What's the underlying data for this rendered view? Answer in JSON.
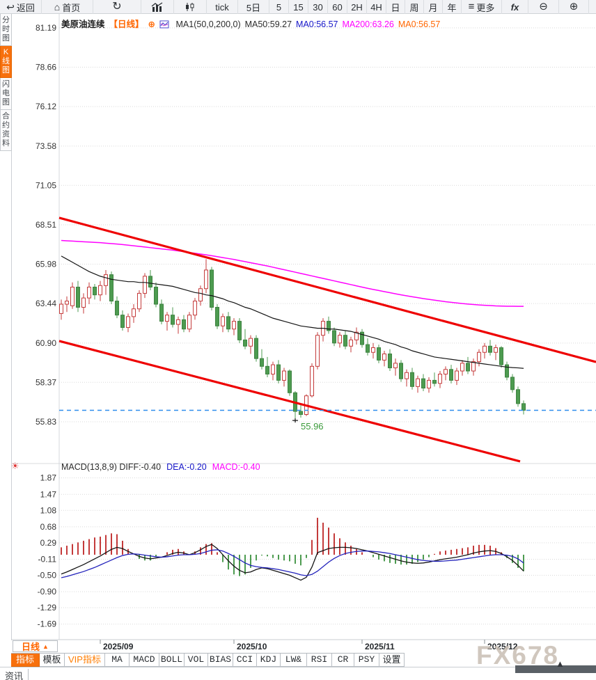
{
  "toolbar": {
    "items": [
      {
        "id": "back",
        "icon": "back",
        "label": "返回",
        "w": 60
      },
      {
        "id": "home",
        "icon": "home",
        "label": "首页",
        "w": 74
      },
      {
        "id": "refresh",
        "icon": "refresh",
        "label": "",
        "w": 69
      },
      {
        "id": "line-chart-mode",
        "icon": "bar-line-chart",
        "label": "",
        "w": 47
      },
      {
        "id": "candle-chart-mode",
        "icon": "candle-chart",
        "label": "",
        "w": 47
      },
      {
        "id": "tick",
        "icon": "",
        "label": "tick",
        "w": 45
      },
      {
        "id": "period-5d",
        "icon": "",
        "label": "5日",
        "w": 45
      },
      {
        "id": "period-5",
        "icon": "",
        "label": "5",
        "w": 28
      },
      {
        "id": "period-15",
        "icon": "",
        "label": "15",
        "w": 28
      },
      {
        "id": "period-30",
        "icon": "",
        "label": "30",
        "w": 28
      },
      {
        "id": "period-60",
        "icon": "",
        "label": "60",
        "w": 28
      },
      {
        "id": "period-2h",
        "icon": "",
        "label": "2H",
        "w": 28
      },
      {
        "id": "period-4h",
        "icon": "",
        "label": "4H",
        "w": 28
      },
      {
        "id": "period-day",
        "icon": "",
        "label": "日",
        "w": 27
      },
      {
        "id": "period-week",
        "icon": "",
        "label": "周",
        "w": 27
      },
      {
        "id": "period-month",
        "icon": "",
        "label": "月",
        "w": 27
      },
      {
        "id": "period-year",
        "icon": "",
        "label": "年",
        "w": 27
      },
      {
        "id": "more",
        "icon": "menu",
        "label": "更多",
        "w": 58
      },
      {
        "id": "fx",
        "icon": "fx",
        "label": "",
        "w": 38
      },
      {
        "id": "zoom-out",
        "icon": "zoom-out",
        "label": "",
        "w": 44
      },
      {
        "id": "zoom-in",
        "icon": "zoom-in",
        "label": "",
        "w": 43
      }
    ]
  },
  "sidebar": {
    "tabs": [
      {
        "label": "分时图",
        "active": false
      },
      {
        "label": "K线图",
        "active": true
      },
      {
        "label": "闪电图",
        "active": false
      },
      {
        "label": "合约资料",
        "active": false
      }
    ]
  },
  "legend": {
    "symbol": "美原油连续",
    "period_tag": "【日线】",
    "plus_badge": "⊕",
    "ma_config": "MA1(50,0,200,0)",
    "ma50": "MA50:59.27",
    "ma0_blue": "MA0:56.57",
    "ma200": "MA200:63.26",
    "ma0_orange": "MA0:56.57"
  },
  "macd_header": {
    "name_and_diff": "MACD(13,8,9) DIFF:-0.40",
    "dea": "DEA:-0.20",
    "macd": "MACD:-0.40",
    "gear_icon": "☀"
  },
  "bottom": {
    "period": {
      "label": "日线",
      "arrow": "▲"
    },
    "tabs": [
      {
        "label": "指标",
        "style": "active",
        "cjk": true,
        "w": 41
      },
      {
        "label": "模板",
        "style": "normal",
        "cjk": true,
        "w": 36
      },
      {
        "label": "VIP指标",
        "style": "vip",
        "cjk": true,
        "w": 58
      },
      {
        "label": "MA",
        "style": "normal",
        "w": 35
      },
      {
        "label": "MACD",
        "style": "normal",
        "w": 43
      },
      {
        "label": "BOLL",
        "style": "normal",
        "w": 36
      },
      {
        "label": "VOL",
        "style": "normal",
        "w": 34
      },
      {
        "label": "BIAS",
        "style": "normal",
        "w": 36
      },
      {
        "label": "CCI",
        "style": "normal",
        "w": 34
      },
      {
        "label": "KDJ",
        "style": "normal",
        "w": 34
      },
      {
        "label": "LW&",
        "style": "normal",
        "w": 38
      },
      {
        "label": "RSI",
        "style": "normal",
        "w": 36
      },
      {
        "label": "CR",
        "style": "normal",
        "w": 32
      },
      {
        "label": "PSY",
        "style": "normal",
        "w": 36
      },
      {
        "label": "设置",
        "style": "normal",
        "cjk": true,
        "w": 36
      }
    ],
    "news_tab": "资讯",
    "watermark": "FX678",
    "scroll_arrow": "▲"
  },
  "colors": {
    "accent_orange": "#ff6600",
    "up_red": "#c43a3a",
    "down_green": "#4d9b50",
    "ma50_black": "#141414",
    "ma200_magenta": "#ff00ff",
    "diff_black": "#141414",
    "dea_blue": "#2222bb",
    "channel_red": "#ee0202",
    "last_price_blue": "#2e8ded",
    "low_label_green": "#3a9a3a",
    "grid": "#d9d9d9",
    "axis_text": "#333333"
  },
  "chart_data": {
    "type": "candlestick+macd",
    "title": "美原油连续 日线",
    "price_axis": {
      "labels": [
        "81.19",
        "78.66",
        "76.12",
        "73.58",
        "71.05",
        "68.51",
        "65.98",
        "63.44",
        "60.90",
        "58.37",
        "55.83"
      ]
    },
    "x_ticks": [
      {
        "label": "2025/09",
        "index": 7
      },
      {
        "label": "2025/10",
        "index": 31
      },
      {
        "label": "2025/11",
        "index": 54
      },
      {
        "label": "2025/12",
        "index": 76
      }
    ],
    "last_price_line": 56.57,
    "low_annotation": {
      "index": 42,
      "price": 55.96,
      "label": "55.96"
    },
    "channel": {
      "upper": {
        "x1": 85,
        "p1": 68.96,
        "x2": 856,
        "p2": 59.68
      },
      "lower": {
        "x1": 85,
        "p1": 61.03,
        "x2": 747,
        "p2": 53.28
      }
    },
    "candles": [
      [
        62.8,
        63.7,
        62.4,
        63.4
      ],
      [
        63.4,
        63.9,
        62.9,
        63.6
      ],
      [
        63.3,
        64.8,
        63.1,
        64.5
      ],
      [
        64.5,
        64.9,
        62.9,
        63.2
      ],
      [
        63.2,
        64.1,
        62.8,
        63.8
      ],
      [
        63.8,
        64.8,
        63.4,
        64.5
      ],
      [
        64.5,
        64.7,
        63.7,
        64.0
      ],
      [
        64.0,
        64.9,
        63.6,
        64.6
      ],
      [
        64.6,
        65.6,
        64.0,
        65.3
      ],
      [
        65.3,
        65.5,
        63.4,
        63.6
      ],
      [
        63.6,
        63.9,
        62.5,
        62.7
      ],
      [
        62.7,
        63.0,
        61.7,
        61.9
      ],
      [
        61.9,
        62.8,
        61.6,
        62.6
      ],
      [
        62.6,
        63.4,
        62.2,
        63.1
      ],
      [
        63.1,
        64.3,
        62.9,
        64.1
      ],
      [
        64.1,
        65.4,
        63.8,
        65.2
      ],
      [
        65.2,
        65.6,
        64.3,
        64.5
      ],
      [
        64.5,
        64.8,
        63.2,
        63.4
      ],
      [
        63.4,
        63.7,
        62.1,
        62.3
      ],
      [
        62.3,
        62.9,
        61.7,
        62.7
      ],
      [
        62.7,
        63.2,
        61.9,
        62.1
      ],
      [
        62.1,
        62.6,
        61.5,
        62.4
      ],
      [
        62.4,
        62.7,
        61.6,
        61.8
      ],
      [
        61.8,
        62.9,
        61.6,
        62.7
      ],
      [
        62.7,
        63.8,
        62.4,
        63.6
      ],
      [
        63.6,
        64.6,
        63.3,
        64.4
      ],
      [
        64.4,
        66.3,
        64.1,
        65.6
      ],
      [
        65.6,
        65.8,
        63.0,
        63.2
      ],
      [
        63.2,
        63.4,
        61.8,
        62.0
      ],
      [
        62.0,
        62.8,
        61.6,
        62.6
      ],
      [
        62.6,
        62.9,
        61.6,
        61.8
      ],
      [
        61.8,
        62.5,
        61.4,
        62.3
      ],
      [
        62.3,
        62.5,
        60.9,
        61.1
      ],
      [
        61.1,
        61.8,
        60.5,
        60.7
      ],
      [
        60.7,
        61.4,
        60.2,
        61.2
      ],
      [
        61.2,
        61.4,
        59.7,
        59.9
      ],
      [
        59.9,
        60.5,
        59.2,
        59.4
      ],
      [
        59.4,
        60.0,
        58.7,
        58.9
      ],
      [
        58.9,
        59.7,
        58.5,
        59.5
      ],
      [
        59.5,
        59.8,
        58.3,
        58.5
      ],
      [
        58.5,
        59.3,
        58.1,
        59.1
      ],
      [
        59.1,
        59.2,
        57.5,
        57.7
      ],
      [
        57.7,
        57.8,
        55.96,
        56.5
      ],
      [
        56.5,
        56.9,
        56.1,
        56.3
      ],
      [
        56.3,
        57.6,
        56.2,
        57.5
      ],
      [
        57.5,
        59.6,
        57.4,
        59.4
      ],
      [
        59.4,
        61.6,
        59.2,
        61.4
      ],
      [
        61.4,
        62.5,
        61.0,
        62.3
      ],
      [
        62.3,
        62.6,
        61.5,
        61.7
      ],
      [
        61.7,
        61.9,
        60.7,
        60.9
      ],
      [
        60.9,
        61.6,
        60.6,
        61.4
      ],
      [
        61.4,
        61.7,
        60.5,
        60.7
      ],
      [
        60.7,
        61.3,
        60.3,
        61.1
      ],
      [
        61.1,
        61.9,
        60.8,
        61.6
      ],
      [
        61.6,
        61.8,
        60.6,
        60.8
      ],
      [
        60.8,
        61.2,
        60.1,
        60.3
      ],
      [
        60.3,
        60.9,
        59.9,
        60.6
      ],
      [
        60.6,
        60.8,
        59.6,
        59.8
      ],
      [
        59.8,
        60.4,
        59.4,
        60.2
      ],
      [
        60.2,
        60.5,
        59.1,
        59.3
      ],
      [
        59.3,
        59.9,
        58.8,
        59.6
      ],
      [
        59.6,
        59.8,
        58.4,
        58.6
      ],
      [
        58.6,
        59.2,
        58.1,
        59.0
      ],
      [
        59.0,
        59.3,
        57.9,
        58.1
      ],
      [
        58.1,
        58.8,
        57.7,
        58.6
      ],
      [
        58.6,
        58.9,
        57.8,
        58.0
      ],
      [
        58.0,
        58.7,
        57.7,
        58.5
      ],
      [
        58.5,
        59.0,
        58.1,
        58.3
      ],
      [
        58.3,
        59.1,
        58.0,
        58.9
      ],
      [
        58.9,
        59.4,
        58.5,
        59.2
      ],
      [
        59.2,
        59.5,
        58.3,
        58.5
      ],
      [
        58.5,
        59.3,
        58.2,
        59.1
      ],
      [
        59.1,
        59.8,
        58.8,
        59.6
      ],
      [
        59.6,
        60.0,
        58.9,
        59.1
      ],
      [
        59.1,
        59.9,
        58.8,
        59.7
      ],
      [
        59.7,
        60.5,
        59.4,
        60.3
      ],
      [
        60.3,
        60.9,
        59.9,
        60.7
      ],
      [
        60.7,
        61.1,
        60.1,
        60.3
      ],
      [
        60.3,
        60.8,
        59.8,
        60.6
      ],
      [
        60.6,
        60.7,
        59.3,
        59.5
      ],
      [
        59.5,
        59.7,
        58.5,
        58.7
      ],
      [
        58.7,
        58.9,
        57.7,
        57.9
      ],
      [
        57.9,
        58.1,
        56.8,
        57.0
      ],
      [
        57.0,
        57.2,
        56.3,
        56.57
      ]
    ],
    "ma50": [
      66.5,
      66.3,
      66.1,
      65.9,
      65.7,
      65.5,
      65.35,
      65.2,
      65.1,
      65.0,
      64.95,
      64.9,
      64.85,
      64.85,
      64.8,
      64.8,
      64.75,
      64.7,
      64.65,
      64.6,
      64.55,
      64.45,
      64.35,
      64.25,
      64.15,
      64.1,
      64.0,
      63.95,
      63.85,
      63.75,
      63.6,
      63.5,
      63.35,
      63.2,
      63.1,
      62.95,
      62.8,
      62.65,
      62.5,
      62.4,
      62.3,
      62.2,
      62.1,
      62.0,
      61.95,
      61.9,
      61.85,
      61.85,
      61.8,
      61.8,
      61.75,
      61.7,
      61.65,
      61.55,
      61.45,
      61.35,
      61.25,
      61.15,
      61.0,
      60.9,
      60.8,
      60.65,
      60.55,
      60.4,
      60.3,
      60.2,
      60.1,
      60.0,
      59.95,
      59.9,
      59.85,
      59.8,
      59.75,
      59.7,
      59.65,
      59.6,
      59.55,
      59.5,
      59.45,
      59.4,
      59.35,
      59.32,
      59.3,
      59.27
    ],
    "ma200": [
      67.5,
      67.48,
      67.46,
      67.44,
      67.42,
      67.4,
      67.38,
      67.36,
      67.33,
      67.3,
      67.27,
      67.24,
      67.2,
      67.16,
      67.12,
      67.08,
      67.04,
      67.0,
      66.96,
      66.92,
      66.88,
      66.83,
      66.78,
      66.73,
      66.68,
      66.63,
      66.58,
      66.52,
      66.46,
      66.4,
      66.34,
      66.28,
      66.21,
      66.14,
      66.07,
      66.0,
      65.93,
      65.86,
      65.78,
      65.7,
      65.62,
      65.54,
      65.46,
      65.38,
      65.3,
      65.22,
      65.14,
      65.06,
      64.98,
      64.9,
      64.82,
      64.74,
      64.66,
      64.58,
      64.5,
      64.42,
      64.35,
      64.28,
      64.21,
      64.14,
      64.07,
      64.0,
      63.94,
      63.88,
      63.82,
      63.76,
      63.71,
      63.66,
      63.61,
      63.56,
      63.52,
      63.48,
      63.44,
      63.41,
      63.38,
      63.35,
      63.33,
      63.31,
      63.29,
      63.28,
      63.27,
      63.265,
      63.26,
      63.26
    ],
    "macd": {
      "params": "13,8,9",
      "axis_labels": [
        "1.87",
        "1.47",
        "1.08",
        "0.68",
        "0.29",
        "-0.11",
        "-0.50",
        "-0.90",
        "-1.29",
        "-1.69"
      ],
      "diff": [
        -0.47,
        -0.42,
        -0.36,
        -0.3,
        -0.24,
        -0.17,
        -0.1,
        -0.03,
        0.05,
        0.13,
        0.18,
        0.15,
        0.08,
        0.02,
        -0.04,
        -0.08,
        -0.1,
        -0.08,
        -0.06,
        -0.02,
        0.03,
        0.06,
        0.04,
        0.0,
        0.05,
        0.12,
        0.2,
        0.25,
        0.15,
        0.0,
        -0.15,
        -0.28,
        -0.38,
        -0.44,
        -0.42,
        -0.36,
        -0.32,
        -0.34,
        -0.38,
        -0.42,
        -0.46,
        -0.5,
        -0.56,
        -0.62,
        -0.55,
        -0.3,
        0.05,
        0.1,
        0.15,
        0.17,
        0.18,
        0.18,
        0.17,
        0.15,
        0.12,
        0.09,
        0.05,
        0.01,
        -0.03,
        -0.07,
        -0.11,
        -0.15,
        -0.18,
        -0.2,
        -0.21,
        -0.2,
        -0.18,
        -0.15,
        -0.12,
        -0.1,
        -0.08,
        -0.06,
        -0.03,
        0.0,
        0.04,
        0.07,
        0.09,
        0.1,
        0.08,
        0.03,
        -0.05,
        -0.14,
        -0.26,
        -0.4
      ],
      "dea": [
        -0.56,
        -0.53,
        -0.49,
        -0.45,
        -0.41,
        -0.36,
        -0.31,
        -0.25,
        -0.19,
        -0.13,
        -0.07,
        -0.02,
        0.01,
        0.02,
        0.01,
        -0.01,
        -0.03,
        -0.05,
        -0.06,
        -0.05,
        -0.03,
        -0.01,
        0.0,
        0.0,
        0.01,
        0.03,
        0.07,
        0.11,
        0.12,
        0.09,
        0.03,
        -0.04,
        -0.12,
        -0.2,
        -0.26,
        -0.29,
        -0.31,
        -0.32,
        -0.34,
        -0.36,
        -0.39,
        -0.42,
        -0.45,
        -0.49,
        -0.51,
        -0.48,
        -0.4,
        -0.29,
        -0.18,
        -0.09,
        -0.02,
        0.03,
        0.06,
        0.08,
        0.09,
        0.09,
        0.08,
        0.07,
        0.05,
        0.03,
        0.0,
        -0.03,
        -0.06,
        -0.09,
        -0.12,
        -0.14,
        -0.15,
        -0.16,
        -0.16,
        -0.15,
        -0.14,
        -0.13,
        -0.11,
        -0.09,
        -0.07,
        -0.05,
        -0.03,
        -0.01,
        0.0,
        0.0,
        -0.01,
        -0.04,
        -0.1,
        -0.2
      ]
    }
  }
}
